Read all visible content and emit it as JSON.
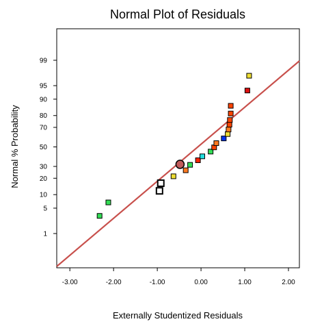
{
  "chart_data": {
    "type": "scatter",
    "title": "Normal Plot of Residuals",
    "xlabel": "Externally Studentized Residuals",
    "ylabel": "Normal % Probability",
    "xlim": [
      -3.3,
      2.25
    ],
    "x_ticks": [
      "-3.00",
      "-2.00",
      "-1.00",
      "0.00",
      "1.00",
      "2.00"
    ],
    "y_scale": "normal-probability",
    "y_ticks": [
      "1",
      "5",
      "10",
      "20",
      "30",
      "50",
      "70",
      "80",
      "90",
      "95",
      "99"
    ],
    "grid": false,
    "reference_line": {
      "color": "#c8504c"
    },
    "points": [
      {
        "x": -2.32,
        "y": 3.2,
        "color": "#33dd55"
      },
      {
        "x": -2.12,
        "y": 6.8,
        "color": "#33dd55"
      },
      {
        "x": -0.95,
        "y": 11.9,
        "color": "#ffffff"
      },
      {
        "x": -0.92,
        "y": 16.5,
        "color": "#ffffff"
      },
      {
        "x": -0.63,
        "y": 21.5,
        "color": "#eedd33"
      },
      {
        "x": -0.48,
        "y": 32.0,
        "color": "#c05a5a",
        "highlight": true
      },
      {
        "x": -0.35,
        "y": 26.5,
        "color": "#ff7a22"
      },
      {
        "x": -0.25,
        "y": 31.5,
        "color": "#33dd55"
      },
      {
        "x": -0.07,
        "y": 36.0,
        "color": "#ff2200"
      },
      {
        "x": 0.03,
        "y": 40.0,
        "color": "#22dddd"
      },
      {
        "x": 0.22,
        "y": 45.0,
        "color": "#33dd55"
      },
      {
        "x": 0.3,
        "y": 49.5,
        "color": "#ff4400"
      },
      {
        "x": 0.35,
        "y": 54.0,
        "color": "#ff7a22"
      },
      {
        "x": 0.52,
        "y": 59.0,
        "color": "#0033ee"
      },
      {
        "x": 0.61,
        "y": 63.5,
        "color": "#eedd33"
      },
      {
        "x": 0.63,
        "y": 68.0,
        "color": "#ff7a22"
      },
      {
        "x": 0.65,
        "y": 72.5,
        "color": "#ff4400"
      },
      {
        "x": 0.66,
        "y": 76.5,
        "color": "#ff4400"
      },
      {
        "x": 0.68,
        "y": 81.5,
        "color": "#ff4400"
      },
      {
        "x": 0.68,
        "y": 86.5,
        "color": "#ff4400"
      },
      {
        "x": 1.06,
        "y": 93.5,
        "color": "#dd1111"
      },
      {
        "x": 1.1,
        "y": 97.2,
        "color": "#eedd33"
      }
    ]
  }
}
